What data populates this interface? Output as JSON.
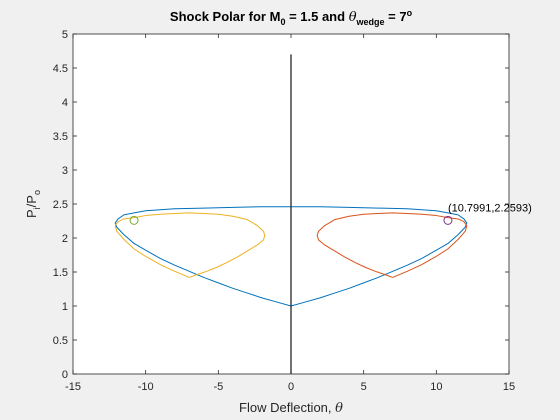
{
  "chart_data": {
    "type": "line",
    "title_parts": {
      "prefix": "Shock Polar for M",
      "sub0": "0",
      "mid": " = 1.5 and ",
      "theta": "θ",
      "sub1": "wedge",
      "suffix": " = 7",
      "sup": "o"
    },
    "xlabel": {
      "text": "Flow Deflection, ",
      "symbol": "θ"
    },
    "ylabel": {
      "main": "P",
      "sub1": "i",
      "mid": "/P",
      "sub2": "o"
    },
    "xlim": [
      -15,
      15
    ],
    "ylim": [
      0,
      5
    ],
    "xticks": [
      -15,
      -10,
      -5,
      0,
      5,
      10,
      15
    ],
    "yticks": [
      0,
      0.5,
      1,
      1.5,
      2,
      2.5,
      3,
      3.5,
      4,
      4.5,
      5
    ],
    "ytick_labels": [
      "0",
      "0.5",
      "1",
      "1.5",
      "2",
      "2.5",
      "3",
      "3.5",
      "4",
      "4.5",
      "5"
    ],
    "grid": false,
    "legend": "none",
    "series": [
      {
        "color": "#0072BD",
        "x": [
          0,
          1,
          2,
          3,
          4,
          5,
          6,
          7,
          8,
          9,
          10,
          10.8,
          11.5,
          11.99,
          12.1,
          11.9,
          11.5,
          10.8,
          10,
          8,
          6,
          4,
          2,
          0,
          -2,
          -4,
          -6,
          -8,
          -10,
          -10.8,
          -11.5,
          -11.9,
          -12.1,
          -11.99,
          -11.5,
          -10.8,
          -10,
          -9,
          -8,
          -7,
          -6,
          -5,
          -4,
          -3,
          -2,
          -1,
          0
        ],
        "y": [
          1.0,
          1.06,
          1.12,
          1.19,
          1.26,
          1.34,
          1.42,
          1.51,
          1.6,
          1.7,
          1.82,
          1.92,
          2.05,
          2.16,
          2.22,
          2.28,
          2.34,
          2.37,
          2.4,
          2.43,
          2.44,
          2.45,
          2.46,
          2.46,
          2.46,
          2.45,
          2.44,
          2.43,
          2.4,
          2.37,
          2.34,
          2.28,
          2.22,
          2.16,
          2.05,
          1.92,
          1.82,
          1.7,
          1.6,
          1.51,
          1.42,
          1.34,
          1.26,
          1.19,
          1.12,
          1.06,
          1.0
        ]
      },
      {
        "color": "#D95319",
        "x": [
          7,
          8,
          9,
          10,
          10.8,
          11.5,
          11.99,
          12.1,
          11.9,
          11.5,
          10.8,
          10,
          9,
          8,
          7,
          6,
          5,
          4,
          3,
          2.3,
          1.9,
          1.8,
          1.9,
          2.3,
          3,
          3.7,
          4.4,
          5.1,
          5.8,
          6.5,
          7
        ],
        "y": [
          1.42,
          1.51,
          1.61,
          1.73,
          1.84,
          1.98,
          2.1,
          2.18,
          2.24,
          2.28,
          2.3,
          2.33,
          2.35,
          2.36,
          2.37,
          2.36,
          2.35,
          2.32,
          2.27,
          2.18,
          2.1,
          2.04,
          1.97,
          1.9,
          1.81,
          1.72,
          1.64,
          1.57,
          1.51,
          1.46,
          1.42
        ]
      },
      {
        "color": "#EDB120",
        "x": [
          -7,
          -8,
          -9,
          -10,
          -10.8,
          -11.5,
          -11.99,
          -12.1,
          -11.9,
          -11.5,
          -10.8,
          -10,
          -9,
          -8,
          -7,
          -6,
          -5,
          -4,
          -3,
          -2.3,
          -1.9,
          -1.8,
          -1.9,
          -2.3,
          -3,
          -3.7,
          -4.4,
          -5.1,
          -5.8,
          -6.5,
          -7
        ],
        "y": [
          1.42,
          1.51,
          1.61,
          1.73,
          1.84,
          1.98,
          2.1,
          2.18,
          2.24,
          2.28,
          2.3,
          2.33,
          2.35,
          2.36,
          2.37,
          2.36,
          2.35,
          2.32,
          2.27,
          2.18,
          2.1,
          2.04,
          1.97,
          1.9,
          1.81,
          1.72,
          1.64,
          1.57,
          1.51,
          1.46,
          1.42
        ]
      },
      {
        "color": "#262626",
        "x": [
          0,
          0
        ],
        "y": [
          0,
          4.7
        ]
      }
    ],
    "markers": [
      {
        "x": 10.7991,
        "y": 2.2593,
        "color": "#7E2F8E"
      },
      {
        "x": -10.7991,
        "y": 2.2593,
        "color": "#77AC30"
      }
    ],
    "annotation": {
      "text": "(10.7991,2.2593)",
      "x": 10.7991,
      "y": 2.2593
    }
  }
}
